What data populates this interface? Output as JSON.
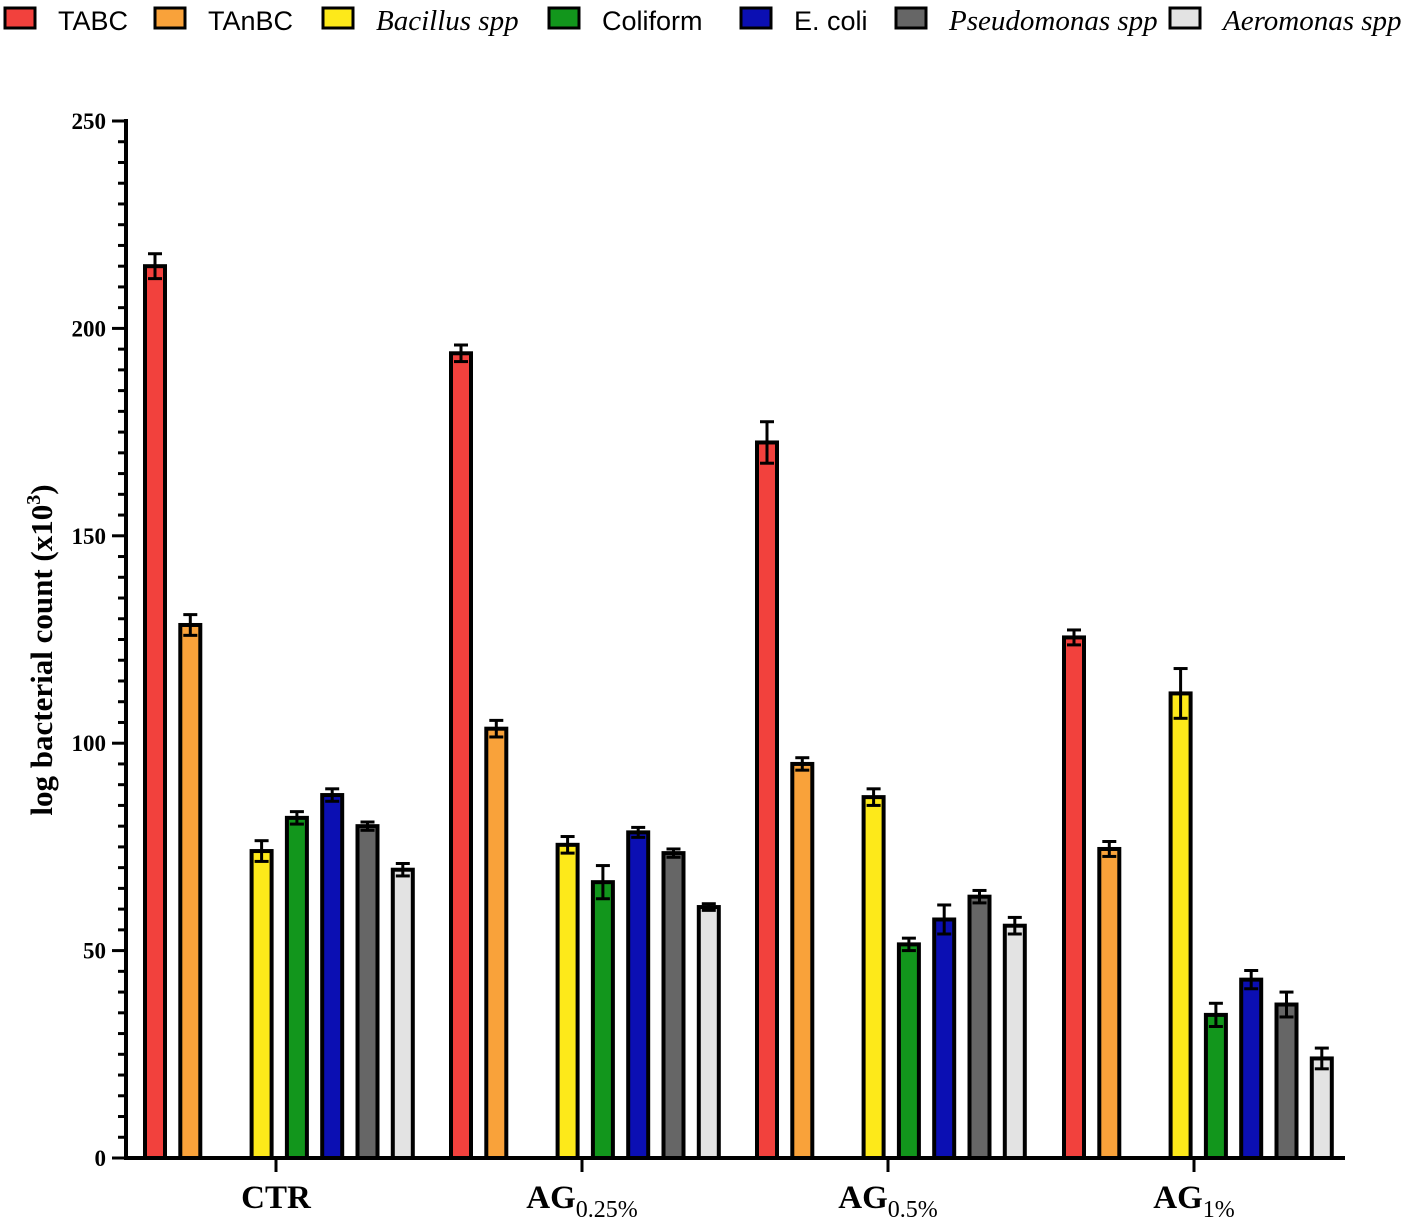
{
  "chart_data": {
    "type": "bar",
    "title": "",
    "xlabel": "",
    "ylabel": "log bacterial count (x10",
    "ylabel_sup": "3",
    "ylabel_close": ")",
    "ylim": [
      0,
      250
    ],
    "yticks": [
      "0",
      "50",
      "100",
      "150",
      "200",
      "250"
    ],
    "ytick_values": [
      0,
      50,
      100,
      150,
      200,
      250
    ],
    "legend_position": "top",
    "categories": [
      {
        "main": "CTR",
        "sub": ""
      },
      {
        "main": "AG",
        "sub": "0.25%"
      },
      {
        "main": "AG",
        "sub": "0.5%"
      },
      {
        "main": "AG",
        "sub": "1%"
      }
    ],
    "series": [
      {
        "name": "TABC",
        "italic": false,
        "color": "#f2413d",
        "values": [
          215,
          194,
          172.5,
          125.5
        ],
        "errors": [
          3,
          2,
          5,
          1.8
        ]
      },
      {
        "name": "TAnBC",
        "italic": false,
        "color": "#f9a23a",
        "values": [
          128.5,
          103.5,
          95,
          74.5
        ],
        "errors": [
          2.5,
          2,
          1.5,
          1.8
        ]
      },
      {
        "name": "Bacillus spp",
        "italic": true,
        "color": "#fde91a",
        "values": [
          74,
          75.5,
          87,
          112
        ],
        "errors": [
          2.5,
          2,
          2,
          6
        ]
      },
      {
        "name": "Coliform",
        "italic": false,
        "color": "#12961c",
        "values": [
          82,
          66.5,
          51.5,
          34.5
        ],
        "errors": [
          1.5,
          4,
          1.5,
          2.8
        ]
      },
      {
        "name": "E. coli",
        "italic": false,
        "color": "#0b0fb3",
        "values": [
          87.5,
          78.5,
          57.5,
          43
        ],
        "errors": [
          1.5,
          1.2,
          3.5,
          2.2
        ]
      },
      {
        "name": "Pseudomonas spp",
        "italic": true,
        "color": "#666666",
        "values": [
          80,
          73.5,
          63,
          37
        ],
        "errors": [
          1,
          1,
          1.5,
          3
        ]
      },
      {
        "name": "Aeromonas spp",
        "italic": true,
        "color": "#e3e3e3",
        "values": [
          69.5,
          60.5,
          56,
          24
        ],
        "errors": [
          1.5,
          0.8,
          2,
          2.5
        ]
      }
    ]
  }
}
